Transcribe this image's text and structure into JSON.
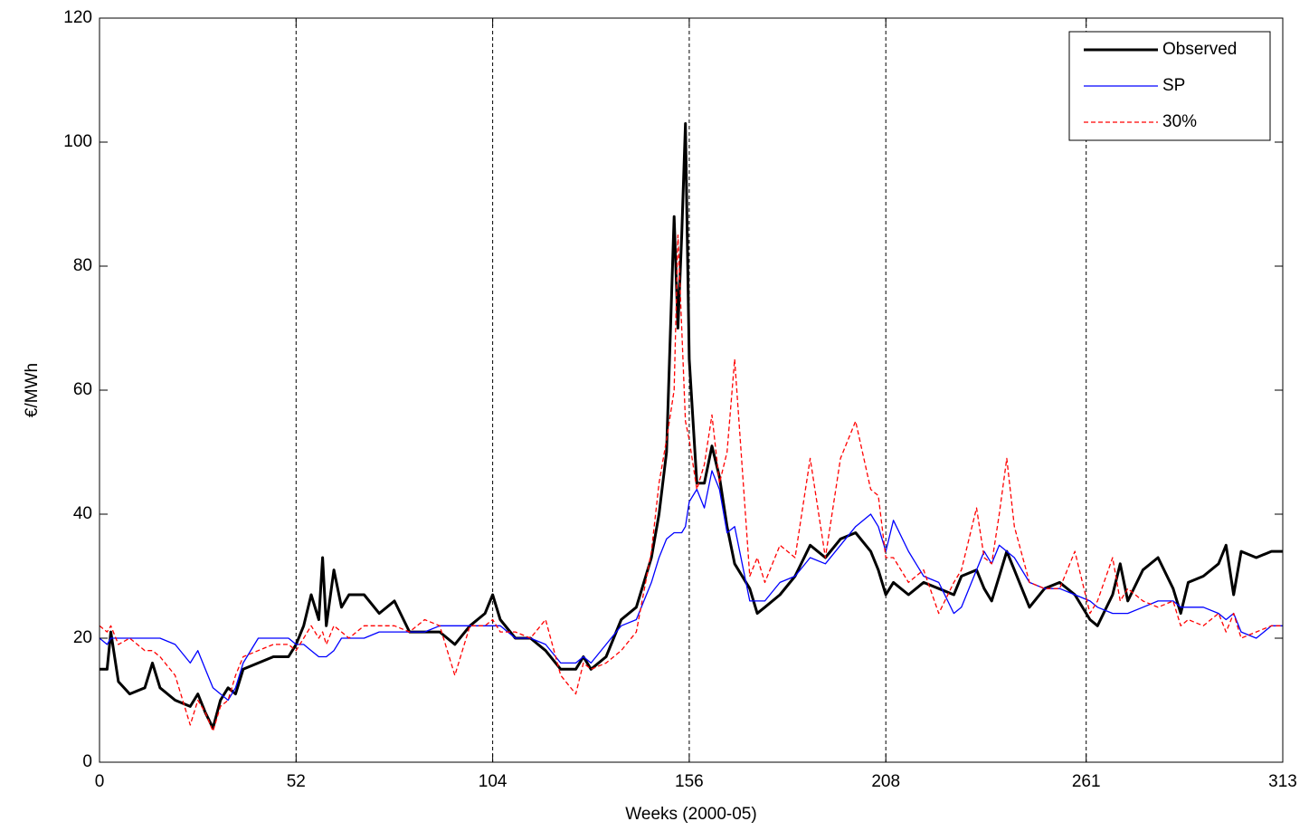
{
  "chart_data": {
    "type": "line",
    "x_label": "Weeks (2000-05)",
    "y_label": "€/MWh",
    "x": [
      0,
      2,
      3,
      5,
      8,
      12,
      14,
      16,
      20,
      24,
      26,
      28,
      30,
      32,
      34,
      36,
      38,
      42,
      46,
      50,
      52,
      54,
      56,
      58,
      59,
      60,
      62,
      64,
      66,
      70,
      74,
      78,
      82,
      86,
      90,
      94,
      98,
      102,
      104,
      106,
      110,
      114,
      118,
      122,
      126,
      128,
      130,
      134,
      138,
      142,
      146,
      148,
      150,
      152,
      153,
      154,
      155,
      156,
      158,
      160,
      162,
      164,
      166,
      168,
      172,
      174,
      176,
      180,
      184,
      188,
      192,
      196,
      200,
      204,
      206,
      208,
      210,
      214,
      218,
      222,
      226,
      228,
      232,
      234,
      236,
      238,
      240,
      242,
      246,
      250,
      254,
      258,
      262,
      264,
      268,
      270,
      272,
      276,
      280,
      284,
      286,
      288,
      292,
      296,
      298,
      300,
      302,
      306,
      310,
      313
    ],
    "series": [
      {
        "name": "Observed",
        "color": "#000000",
        "linestyle": "solid",
        "values": [
          15,
          15,
          21,
          13,
          11,
          12,
          16,
          12,
          10,
          9,
          11,
          8,
          5.5,
          10,
          12,
          11,
          15,
          16,
          17,
          17,
          19,
          22,
          27,
          23,
          33,
          22,
          31,
          25,
          27,
          27,
          24,
          26,
          21,
          21,
          21,
          19,
          22,
          24,
          27,
          23,
          20,
          20,
          18,
          15,
          15,
          17,
          15,
          17,
          23,
          25,
          33,
          40,
          50,
          88,
          70,
          85,
          103,
          65,
          45,
          45,
          51,
          46,
          38,
          32,
          28,
          24,
          25,
          27,
          30,
          35,
          33,
          36,
          37,
          34,
          31,
          27,
          29,
          27,
          29,
          28,
          27,
          30,
          31,
          28,
          26,
          30,
          34,
          31,
          25,
          28,
          29,
          27,
          23,
          22,
          27,
          32,
          26,
          31,
          33,
          28,
          24,
          29,
          30,
          32,
          35,
          27,
          34,
          33,
          34,
          34
        ]
      },
      {
        "name": "SP",
        "color": "#0000ff",
        "linestyle": "solid",
        "values": [
          20,
          19,
          20,
          20,
          20,
          20,
          20,
          20,
          19,
          16,
          18,
          15,
          12,
          11,
          10,
          12,
          16,
          20,
          20,
          20,
          19,
          19,
          18,
          17,
          17,
          17,
          18,
          20,
          20,
          20,
          21,
          21,
          21,
          21,
          22,
          22,
          22,
          22,
          22,
          22,
          20,
          20,
          19,
          16,
          16,
          17,
          16,
          19,
          22,
          23,
          29,
          33,
          36,
          37,
          37,
          37,
          38,
          42,
          44,
          41,
          47,
          44,
          37,
          38,
          26,
          26,
          26,
          29,
          30,
          33,
          32,
          35,
          38,
          40,
          38,
          34,
          39,
          34,
          30,
          29,
          24,
          25,
          31,
          34,
          32,
          35,
          34,
          33,
          29,
          28,
          28,
          27,
          26,
          25,
          24,
          24,
          24,
          25,
          26,
          26,
          25,
          25,
          25,
          24,
          23,
          24,
          21,
          20,
          22,
          22
        ]
      },
      {
        "name": "30%",
        "color": "#ff0000",
        "linestyle": "dashed",
        "values": [
          22,
          21,
          22,
          19,
          20,
          18,
          18,
          17,
          14,
          6,
          10,
          8,
          5,
          9,
          10,
          14,
          17,
          18,
          19,
          19,
          18,
          20,
          22,
          20,
          21,
          19,
          22,
          21,
          20,
          22,
          22,
          22,
          21,
          23,
          22,
          14,
          22,
          22,
          23,
          21,
          21,
          20,
          23,
          14,
          11,
          16,
          15,
          16,
          18,
          21,
          34,
          45,
          52,
          60,
          85,
          70,
          55,
          52,
          44,
          48,
          56,
          45,
          50,
          65,
          30,
          33,
          29,
          35,
          33,
          49,
          33,
          49,
          55,
          44,
          43,
          33,
          33,
          29,
          31,
          24,
          29,
          31,
          41,
          33,
          32,
          40,
          49,
          38,
          29,
          28,
          28,
          34,
          24,
          26,
          33,
          26,
          28,
          26,
          25,
          26,
          22,
          23,
          22,
          24,
          21,
          24,
          20,
          21,
          22,
          22
        ]
      }
    ],
    "xlim": [
      0,
      313
    ],
    "ylim": [
      0,
      120
    ],
    "xticks": [
      0,
      52,
      104,
      156,
      208,
      261,
      313
    ],
    "yticks": [
      0,
      20,
      40,
      60,
      80,
      100,
      120
    ],
    "xgrid": true,
    "legend": "upper right"
  }
}
